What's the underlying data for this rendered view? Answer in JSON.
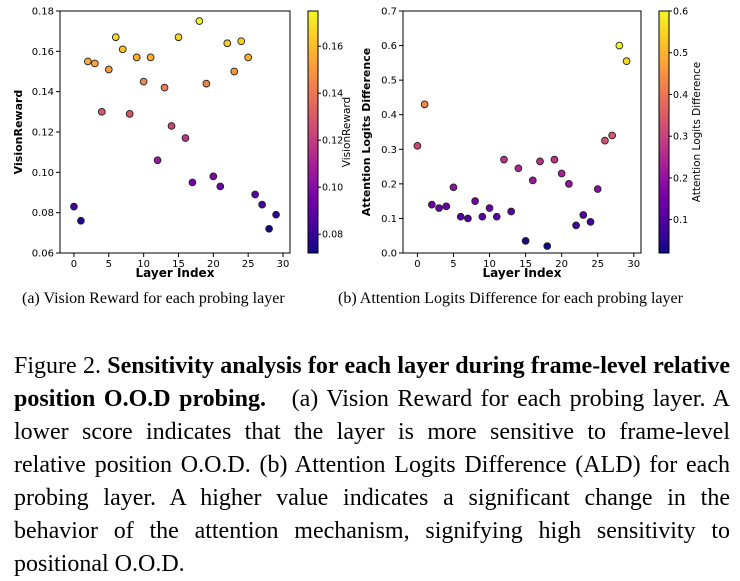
{
  "figure": {
    "subcaption_a": "(a) Vision Reward for each probing layer",
    "subcaption_b": "(b) Attention Logits Difference for each probing layer",
    "caption_label": "Figure 2.",
    "caption_bold": "Sensitivity analysis for each layer during frame-level relative position O.O.D probing.",
    "caption_rest": "(a) Vision Reward for each probing layer. A lower score indicates that the layer is more sensitive to frame-level relative position O.O.D. (b) Attention Logits Difference (ALD) for each probing layer. A higher value indicates a significant change in the behavior of the attention mechanism, signifying high sensitivity to positional O.O.D."
  },
  "colors": {
    "plasma": [
      "#0d0887",
      "#47039f",
      "#7301a8",
      "#9c179e",
      "#bd3786",
      "#d8576b",
      "#ed7953",
      "#fb9f3a",
      "#fdca26",
      "#f0f921"
    ]
  },
  "chart_data": [
    {
      "type": "scatter",
      "title": "",
      "xlabel": "Layer Index",
      "ylabel": "VisionReward",
      "colorbar_label": "VisionReward",
      "xlim": [
        -2,
        31
      ],
      "ylim": [
        0.06,
        0.18
      ],
      "xticks": [
        0,
        5,
        10,
        15,
        20,
        25,
        30
      ],
      "yticks": [
        0.06,
        0.08,
        0.1,
        0.12,
        0.14,
        0.16,
        0.18
      ],
      "ytick_labels": [
        "0.06",
        "0.08",
        "0.10",
        "0.12",
        "0.14",
        "0.16",
        "0.18"
      ],
      "colorbar_range": [
        0.072,
        0.175
      ],
      "colorbar_ticks": [
        0.08,
        0.1,
        0.12,
        0.14,
        0.16
      ],
      "colorbar_tick_labels": [
        "0.08",
        "0.10",
        "0.12",
        "0.14",
        "0.16"
      ],
      "colormap": "plasma",
      "grid": false,
      "x": [
        0,
        1,
        2,
        3,
        4,
        5,
        6,
        7,
        8,
        9,
        10,
        11,
        12,
        13,
        14,
        15,
        16,
        17,
        18,
        19,
        20,
        21,
        22,
        23,
        24,
        25,
        26,
        27,
        28,
        29
      ],
      "y": [
        0.083,
        0.076,
        0.155,
        0.154,
        0.13,
        0.151,
        0.167,
        0.161,
        0.129,
        0.157,
        0.145,
        0.157,
        0.106,
        0.142,
        0.123,
        0.167,
        0.117,
        0.095,
        0.175,
        0.144,
        0.098,
        0.093,
        0.164,
        0.15,
        0.165,
        0.157,
        0.089,
        0.084,
        0.072,
        0.079
      ]
    },
    {
      "type": "scatter",
      "title": "",
      "xlabel": "Layer Index",
      "ylabel": "Attention Logits Difference",
      "colorbar_label": "Attention Logits Difference",
      "xlim": [
        -2,
        31
      ],
      "ylim": [
        0.0,
        0.7
      ],
      "xticks": [
        0,
        5,
        10,
        15,
        20,
        25,
        30
      ],
      "yticks": [
        0.0,
        0.1,
        0.2,
        0.3,
        0.4,
        0.5,
        0.6,
        0.7
      ],
      "ytick_labels": [
        "0.0",
        "0.1",
        "0.2",
        "0.3",
        "0.4",
        "0.5",
        "0.6",
        "0.7"
      ],
      "colorbar_range": [
        0.02,
        0.6
      ],
      "colorbar_ticks": [
        0.1,
        0.2,
        0.3,
        0.4,
        0.5,
        0.6
      ],
      "colorbar_tick_labels": [
        "0.1",
        "0.2",
        "0.3",
        "0.4",
        "0.5",
        "0.6"
      ],
      "colormap": "plasma",
      "grid": false,
      "x": [
        0,
        1,
        2,
        3,
        4,
        5,
        6,
        7,
        8,
        9,
        10,
        11,
        12,
        13,
        14,
        15,
        16,
        17,
        18,
        19,
        20,
        21,
        22,
        23,
        24,
        25,
        26,
        27,
        28,
        29
      ],
      "y": [
        0.31,
        0.43,
        0.14,
        0.13,
        0.135,
        0.19,
        0.105,
        0.1,
        0.15,
        0.105,
        0.13,
        0.105,
        0.27,
        0.12,
        0.245,
        0.035,
        0.21,
        0.265,
        0.02,
        0.27,
        0.23,
        0.2,
        0.08,
        0.11,
        0.09,
        0.185,
        0.325,
        0.34,
        0.6,
        0.555
      ]
    }
  ]
}
